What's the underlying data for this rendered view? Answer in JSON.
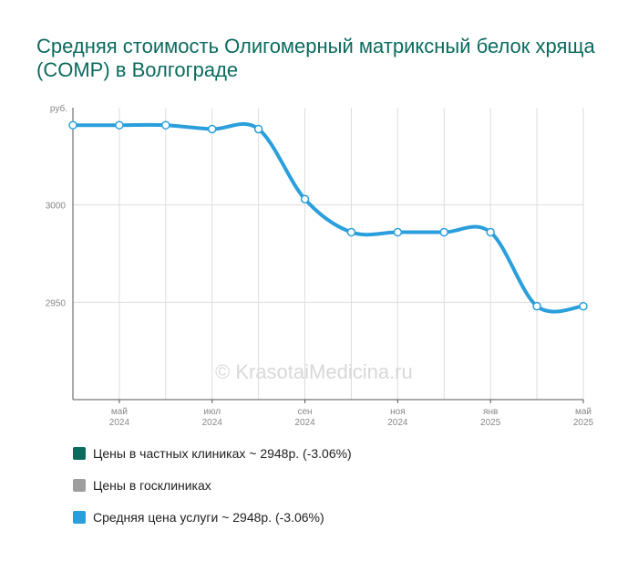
{
  "title": "Средняя стоимость Олигомерный матриксный белок хряща (COMP) в Волгограде",
  "watermark": "© KrasotaiMedicina.ru",
  "colors": {
    "title": "#0b6b5e",
    "private": "#0b6b5e",
    "public": "#9e9e9e",
    "average": "#2b9fdc",
    "grid": "#dddddd",
    "axis": "#555555",
    "tick_text": "#888888"
  },
  "legend": [
    {
      "label": "Цены в частных клиниках ~ 2948р. (-3.06%)",
      "color": "#0b6b5e"
    },
    {
      "label": "Цены в госклиниках",
      "color": "#9e9e9e"
    },
    {
      "label": "Средняя цена услуги ~ 2948р. (-3.06%)",
      "color": "#2b9fdc"
    }
  ],
  "chart_data": {
    "type": "line",
    "title": "Средняя стоимость Олигомерный матриксный белок хряща (COMP) в Волгограде",
    "ylabel": "руб.",
    "y_ticks": [
      2950,
      3000
    ],
    "ylim": [
      2900,
      3050
    ],
    "x_tick_labels": [
      {
        "month": "май",
        "year": "2024",
        "index": 1
      },
      {
        "month": "июл",
        "year": "2024",
        "index": 3
      },
      {
        "month": "сен",
        "year": "2024",
        "index": 5
      },
      {
        "month": "ноя",
        "year": "2024",
        "index": 7
      },
      {
        "month": "янв",
        "year": "2025",
        "index": 9
      },
      {
        "month": "май",
        "year": "2025",
        "index": 11
      }
    ],
    "grid": true,
    "series": [
      {
        "name": "Средняя цена услуги",
        "color": "#2b9fdc",
        "values": [
          3041,
          3041,
          3041,
          3039,
          3039,
          3003,
          2986,
          2986,
          2986,
          2986,
          2948,
          2948
        ]
      }
    ]
  }
}
